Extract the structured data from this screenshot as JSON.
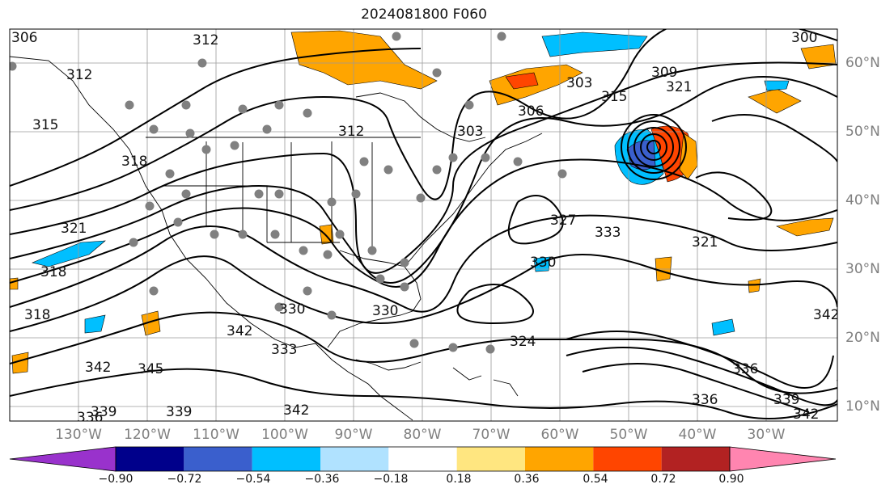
{
  "title": "2024081800 F060",
  "lat_labels": [
    "60°N",
    "50°N",
    "40°N",
    "30°N",
    "20°N",
    "10°N"
  ],
  "lon_labels": [
    "130°W",
    "120°W",
    "110°W",
    "100°W",
    "90°W",
    "80°W",
    "70°W",
    "60°W",
    "50°W",
    "40°W",
    "30°W"
  ],
  "colorbar": {
    "ticks": [
      "−0.90",
      "−0.72",
      "−0.54",
      "−0.36",
      "−0.18",
      "0.18",
      "0.36",
      "0.54",
      "0.72",
      "0.90"
    ],
    "colors": [
      "#9932cc",
      "#00008b",
      "#3a5fcd",
      "#00bfff",
      "#b0e2ff",
      "#ffffff",
      "#ffe680",
      "#ffa500",
      "#ff4500",
      "#b22222",
      "#ff85b0"
    ]
  },
  "contour_labels": [
    "306",
    "312",
    "312",
    "312",
    "306",
    "303",
    "309",
    "300",
    "315",
    "315",
    "318",
    "321",
    "321",
    "318",
    "318",
    "321",
    "324",
    "327",
    "330",
    "333",
    "330",
    "330",
    "333",
    "336",
    "336",
    "339",
    "339",
    "342",
    "342",
    "342",
    "342",
    "345",
    "339",
    "336",
    "342",
    "303"
  ],
  "colors": {
    "contour": "#000000",
    "grid": "#9a9a9a",
    "coast": "#000000",
    "dots": "#808080",
    "tick_text": "#7f7f7f"
  }
}
